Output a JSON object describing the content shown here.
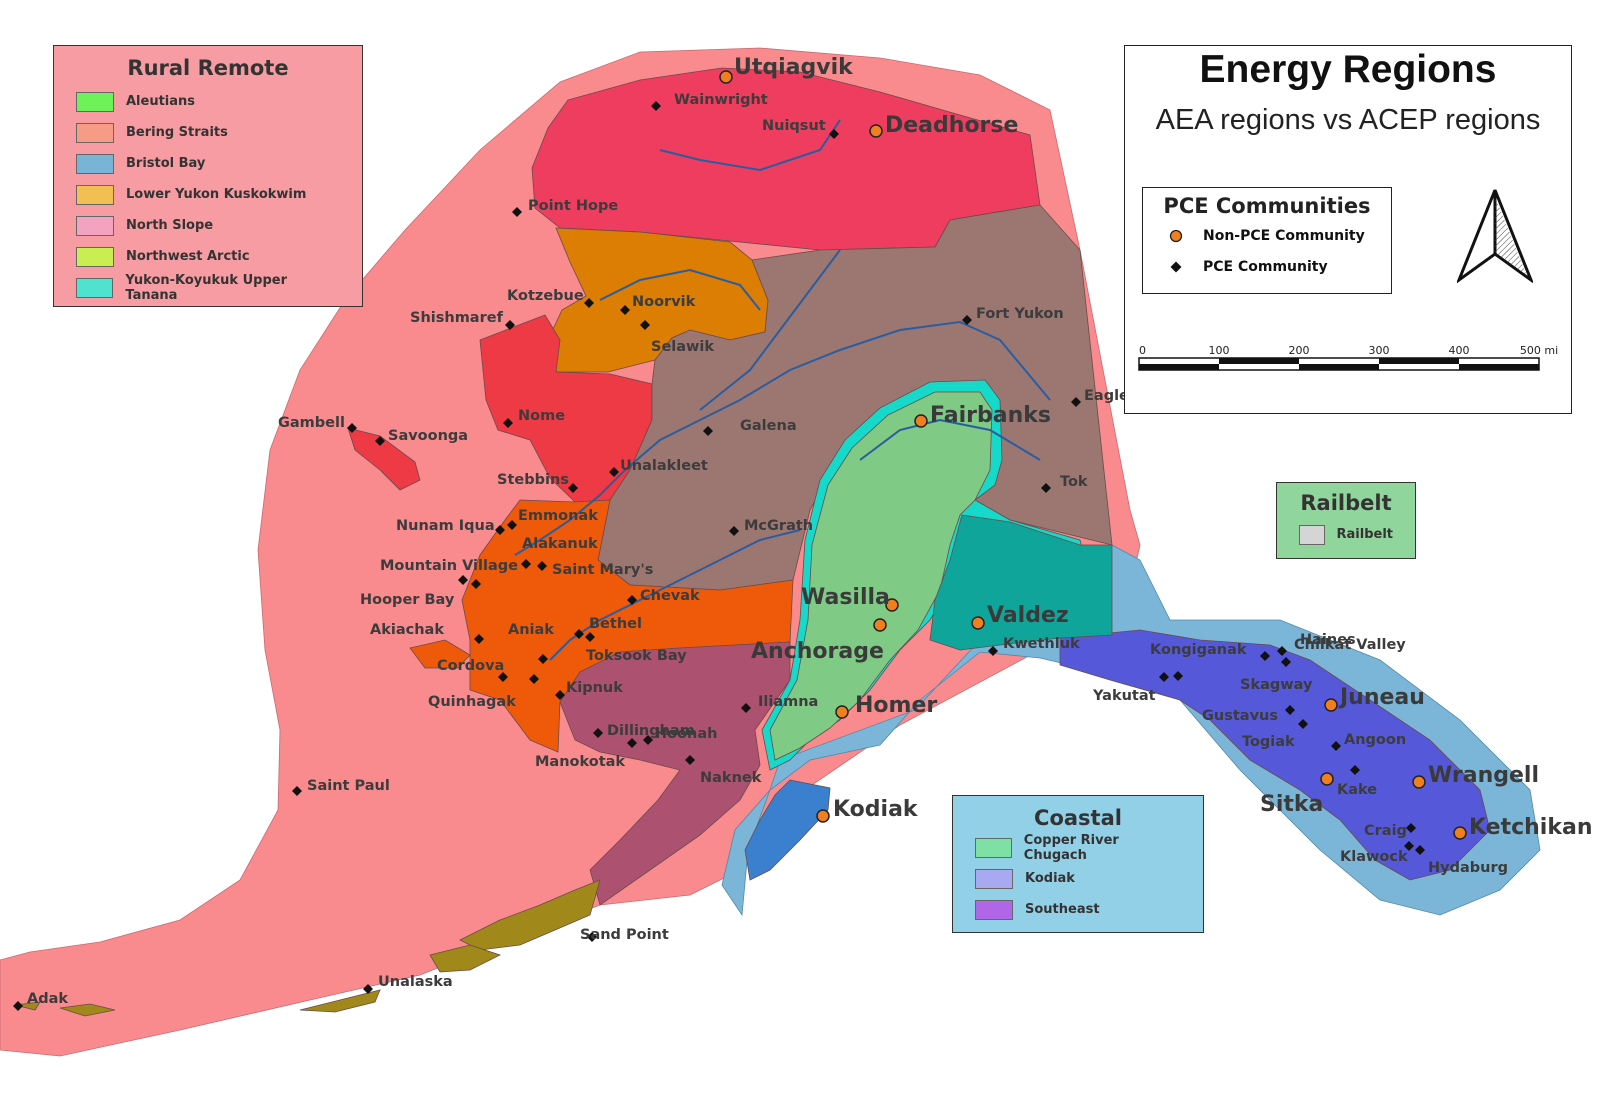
{
  "map": {
    "title": "Energy Regions",
    "subtitle": "AEA regions vs ACEP regions",
    "colors": {
      "water": "#ffffff",
      "rural_remote": "#f98a8e",
      "north_slope": "#ef3d5f",
      "northwest_arctic": "#dc7d04",
      "bering_straits": "#ee3a45",
      "yukon_koyukuk": "#9c7772",
      "lower_yukon_kuskokwim": "#ef5a0a",
      "bristol_bay": "#ad5171",
      "aleutians": "#a0891a",
      "railbelt": "#7fca84",
      "railbelt_outline": "#16d9c9",
      "copper_river": "#0fa59b",
      "coastal": "#7bb6d8",
      "southeast": "#5558d8",
      "kodiak": "#3a80cf",
      "river": "#2a5d9f"
    }
  },
  "rural_legend": {
    "title": "Rural Remote",
    "items": [
      {
        "label": "Aleutians",
        "color": "#6ef25a"
      },
      {
        "label": "Bering Straits",
        "color": "#f69b86"
      },
      {
        "label": "Bristol Bay",
        "color": "#77b4d6"
      },
      {
        "label": "Lower Yukon Kuskokwim",
        "color": "#f2c052"
      },
      {
        "label": "North Slope",
        "color": "#f3a2c0"
      },
      {
        "label": "Northwest Arctic",
        "color": "#c8ee52"
      },
      {
        "label": "Yukon-Koyukuk Upper Tanana",
        "color": "#4fe2cf"
      }
    ]
  },
  "railbelt_legend": {
    "title": "Railbelt",
    "items": [
      {
        "label": "Railbelt",
        "color": "#d5d5d5"
      }
    ]
  },
  "coastal_legend": {
    "title": "Coastal",
    "items": [
      {
        "label": "Copper River Chugach",
        "color": "#7fe0a6"
      },
      {
        "label": "Kodiak",
        "color": "#a9a9f2"
      },
      {
        "label": "Southeast",
        "color": "#b066e8"
      }
    ]
  },
  "pce_legend": {
    "title": "PCE Communities",
    "items": [
      {
        "label": "Non-PCE Community",
        "symbol": "orange-circle"
      },
      {
        "label": "PCE Community",
        "symbol": "black-diamond"
      }
    ]
  },
  "scale": {
    "ticks": [
      "0",
      "100",
      "200",
      "300",
      "400",
      "500 mi"
    ]
  },
  "non_pce_communities": [
    {
      "name": "Utqiagvik"
    },
    {
      "name": "Deadhorse"
    },
    {
      "name": "Fairbanks"
    },
    {
      "name": "Wasilla"
    },
    {
      "name": "Anchorage"
    },
    {
      "name": "Valdez"
    },
    {
      "name": "Homer"
    },
    {
      "name": "Kodiak"
    },
    {
      "name": "Juneau"
    },
    {
      "name": "Sitka"
    },
    {
      "name": "Wrangell"
    },
    {
      "name": "Ketchikan"
    }
  ],
  "pce_communities": [
    {
      "name": "Wainwright"
    },
    {
      "name": "Nuiqsut"
    },
    {
      "name": "Point Hope"
    },
    {
      "name": "Kotzebue"
    },
    {
      "name": "Noorvik"
    },
    {
      "name": "Shishmaref"
    },
    {
      "name": "Selawik"
    },
    {
      "name": "Fort Yukon"
    },
    {
      "name": "Gambell"
    },
    {
      "name": "Savoonga"
    },
    {
      "name": "Nome"
    },
    {
      "name": "Galena"
    },
    {
      "name": "Eagle"
    },
    {
      "name": "Unalakleet"
    },
    {
      "name": "Stebbins"
    },
    {
      "name": "Tok"
    },
    {
      "name": "Emmonak"
    },
    {
      "name": "Nunam Iqua"
    },
    {
      "name": "Alakanuk"
    },
    {
      "name": "McGrath"
    },
    {
      "name": "Mountain Village"
    },
    {
      "name": "Saint Mary's"
    },
    {
      "name": "Hooper Bay"
    },
    {
      "name": "Chevak"
    },
    {
      "name": "Aniak"
    },
    {
      "name": "Bethel"
    },
    {
      "name": "Akiachak"
    },
    {
      "name": "Toksook Bay"
    },
    {
      "name": "Kwethluk"
    },
    {
      "name": "Cordova"
    },
    {
      "name": "Kipnuk"
    },
    {
      "name": "Quinhagak"
    },
    {
      "name": "Kongiganak"
    },
    {
      "name": "Chilkat Valley"
    },
    {
      "name": "Skagway"
    },
    {
      "name": "Haines"
    },
    {
      "name": "Yakutat"
    },
    {
      "name": "Iliamna"
    },
    {
      "name": "Gustavus"
    },
    {
      "name": "Togiak"
    },
    {
      "name": "Dillingham"
    },
    {
      "name": "Hoonah"
    },
    {
      "name": "Angoon"
    },
    {
      "name": "Manokotak"
    },
    {
      "name": "Naknek"
    },
    {
      "name": "Kake"
    },
    {
      "name": "Saint Paul"
    },
    {
      "name": "Craig"
    },
    {
      "name": "Klawock"
    },
    {
      "name": "Hydaburg"
    },
    {
      "name": "Sand Point"
    },
    {
      "name": "Unalaska"
    },
    {
      "name": "Adak"
    }
  ]
}
